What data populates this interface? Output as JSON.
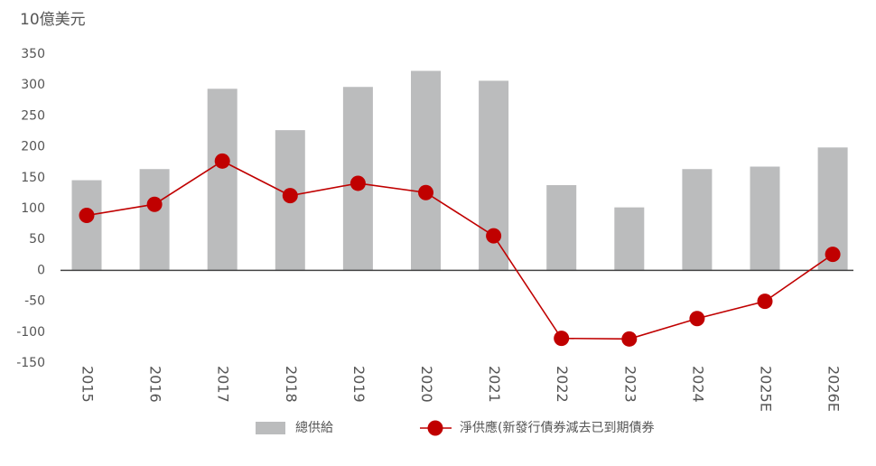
{
  "chart_data": {
    "type": "bar-line",
    "y_axis_label": "10億美元",
    "categories": [
      "2015",
      "2016",
      "2017",
      "2018",
      "2019",
      "2020",
      "2021",
      "2022",
      "2023",
      "2024",
      "2025E",
      "2026E"
    ],
    "series": [
      {
        "name": "總供給",
        "type": "bar",
        "color": "#bbbcbd",
        "values": [
          146,
          164,
          294,
          227,
          297,
          323,
          307,
          138,
          102,
          164,
          168,
          199
        ]
      },
      {
        "name": "淨供應(新發行債券減去已到期債券",
        "type": "line",
        "color": "#c00000",
        "values": [
          89,
          107,
          177,
          121,
          141,
          126,
          56,
          -110,
          -111,
          -78,
          -50,
          26
        ]
      }
    ],
    "ylim": [
      -150,
      350
    ],
    "yticks": [
      -150,
      -100,
      -50,
      0,
      50,
      100,
      150,
      200,
      250,
      300,
      350
    ]
  }
}
